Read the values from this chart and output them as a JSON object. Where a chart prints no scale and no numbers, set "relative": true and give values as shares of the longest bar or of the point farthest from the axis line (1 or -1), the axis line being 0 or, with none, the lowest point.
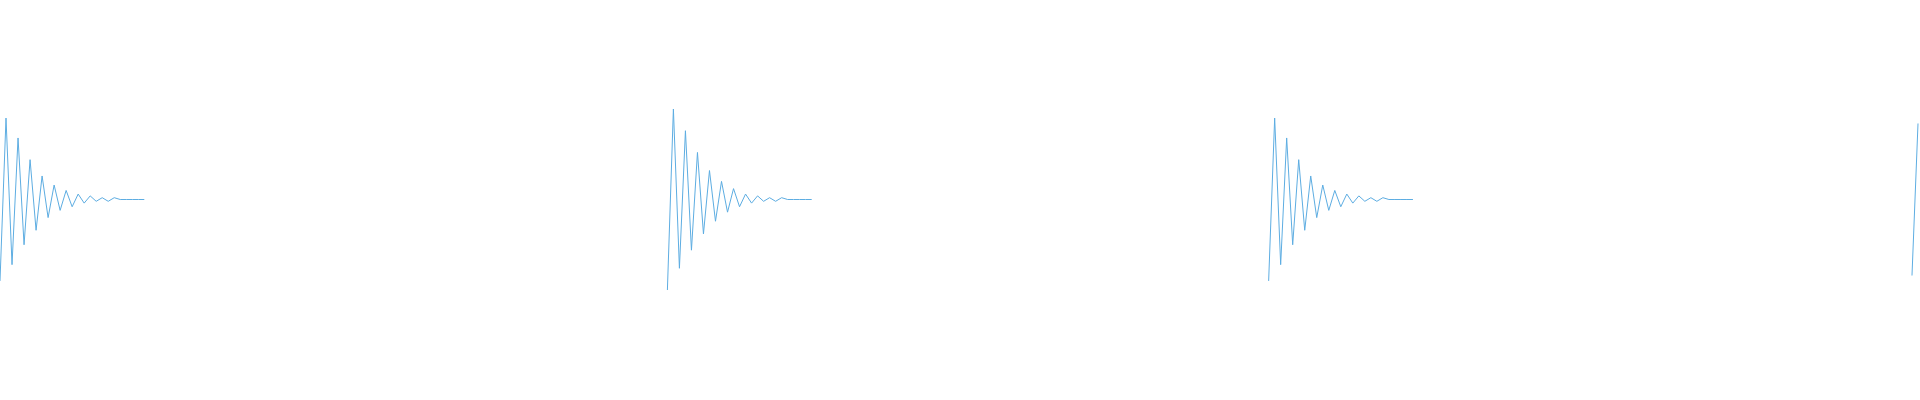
{
  "chart_data": {
    "type": "line",
    "relative": true,
    "categories": [
      null,
      null,
      null,
      null,
      null,
      null,
      null,
      null,
      null,
      null,
      null,
      null,
      null,
      null,
      null,
      null,
      null,
      null,
      null,
      null,
      null,
      null,
      null,
      null,
      null,
      null,
      null,
      null,
      null,
      null,
      null,
      null,
      null,
      null,
      null,
      null,
      null,
      null,
      null,
      null,
      null,
      null,
      null,
      null,
      null,
      null,
      null,
      null,
      null,
      null,
      null,
      null,
      null,
      null,
      null,
      null,
      null,
      null,
      null,
      null,
      null,
      null,
      null,
      null,
      null,
      null,
      null,
      null,
      null,
      null,
      null,
      null,
      null,
      null,
      null,
      null,
      null,
      null,
      null,
      null,
      null,
      null,
      null,
      null,
      null,
      null,
      null,
      null,
      null,
      null,
      null,
      null,
      null,
      null,
      null,
      null,
      null,
      null,
      null,
      null,
      null,
      null,
      null,
      null,
      null,
      null,
      null,
      null,
      null,
      null,
      null,
      null,
      null,
      null,
      null,
      null,
      null,
      null,
      null,
      null,
      null,
      null,
      null,
      null,
      null,
      null,
      null,
      null,
      null,
      null,
      null,
      null,
      null,
      null,
      null,
      null,
      null,
      null,
      null,
      null,
      null,
      null,
      null,
      null,
      null,
      null,
      null,
      null,
      null,
      null,
      null,
      null,
      null,
      null,
      null,
      null,
      null,
      null,
      null,
      null,
      null,
      null,
      null,
      null,
      null,
      null,
      null,
      null,
      null,
      null,
      null,
      null,
      null,
      null,
      null,
      null,
      null,
      null,
      null,
      null,
      null,
      null,
      null,
      null,
      null,
      null,
      null,
      null,
      null,
      null,
      null,
      null,
      null,
      null,
      null,
      null,
      null,
      null,
      null,
      null,
      null,
      null,
      null,
      null,
      null,
      null,
      null,
      null,
      null,
      null,
      null,
      null,
      null,
      null,
      null,
      null,
      null,
      null,
      null,
      null,
      null,
      null,
      null,
      null,
      null,
      null,
      null,
      null,
      null,
      null,
      null,
      null,
      null,
      null,
      null,
      null,
      null,
      null,
      null,
      null,
      null,
      null,
      null,
      null,
      null,
      null,
      null,
      null,
      null,
      null,
      null,
      null,
      null,
      null,
      null,
      null,
      null,
      null,
      null,
      null,
      null,
      null,
      null,
      null,
      null,
      null,
      null,
      null,
      null,
      null,
      null,
      null,
      null,
      null,
      null,
      null,
      null,
      null,
      null,
      null,
      null,
      null,
      null,
      null,
      null,
      null,
      null,
      null,
      null,
      null,
      null,
      null,
      null,
      null,
      null,
      null,
      null,
      null,
      null,
      null,
      null,
      null,
      null,
      null,
      null,
      null,
      null,
      null,
      null,
      null,
      null,
      null,
      null,
      null,
      null,
      null,
      null,
      null,
      null,
      null
    ],
    "series": [
      {
        "color": "#5dade2",
        "values": [
          0.05,
          0.95,
          0.14,
          0.84,
          0.25,
          0.72,
          0.33,
          0.63,
          0.4,
          0.58,
          0.44,
          0.55,
          0.46,
          0.53,
          0.48,
          0.52,
          0.49,
          0.51,
          0.49,
          0.51,
          0.5,
          0.5,
          0.5,
          0.5,
          0.5,
          null,
          null,
          null,
          null,
          null,
          null,
          null,
          null,
          null,
          null,
          null,
          null,
          null,
          null,
          null,
          null,
          null,
          null,
          null,
          null,
          null,
          null,
          null,
          null,
          null,
          null,
          null,
          null,
          null,
          null,
          null,
          null,
          null,
          null,
          null,
          null,
          null,
          null,
          null,
          null,
          null,
          null,
          null,
          null,
          null,
          null,
          null,
          null,
          null,
          null,
          null,
          null,
          null,
          null,
          null,
          null,
          null,
          null,
          null,
          null,
          null,
          null,
          null,
          null,
          null,
          null,
          null,
          null,
          null,
          null,
          null,
          null,
          null,
          null,
          null,
          null,
          null,
          null,
          null,
          null,
          null,
          null,
          null,
          null,
          null,
          null,
          null,
          null,
          null,
          null,
          null,
          null,
          null,
          null,
          null,
          null,
          null,
          null,
          null,
          null,
          null,
          null,
          null,
          null,
          null,
          null,
          null,
          null,
          null,
          null,
          null,
          null,
          null,
          null,
          null,
          null,
          null,
          null,
          null,
          null,
          null,
          null,
          null,
          null,
          null,
          null,
          null,
          null,
          null,
          null,
          null,
          null,
          null,
          null,
          null,
          null,
          null,
          null,
          null,
          null,
          null,
          null,
          null,
          null,
          null,
          null,
          null,
          null,
          null,
          null,
          null,
          null,
          null,
          null,
          null,
          null,
          null,
          null,
          null,
          null,
          null,
          null,
          null,
          null,
          null,
          null,
          null,
          null,
          null,
          null,
          null,
          null,
          null,
          null,
          null,
          null,
          null,
          null,
          null,
          null,
          null,
          null,
          null,
          null,
          null,
          null,
          null,
          null,
          null,
          null,
          null,
          null,
          null,
          null,
          null,
          null,
          null,
          null,
          null,
          null,
          null,
          null,
          null,
          null,
          null,
          null,
          null,
          null,
          null,
          null,
          null,
          null,
          null,
          null,
          null,
          null,
          null,
          null,
          null,
          null,
          null,
          null,
          null,
          null,
          null,
          null,
          null,
          null,
          null,
          null,
          null,
          null,
          null,
          null,
          null,
          null,
          null,
          null,
          null,
          null,
          null,
          null,
          null,
          null,
          null,
          null,
          null,
          null,
          null,
          null,
          null,
          null,
          null,
          null,
          null,
          null,
          null,
          null,
          null,
          null,
          null,
          null,
          null,
          null,
          null,
          null,
          null,
          null,
          null,
          null,
          null,
          null,
          null,
          null,
          null,
          null,
          null,
          null,
          null,
          null,
          null,
          null,
          null,
          null,
          null,
          null,
          null,
          null,
          null,
          null,
          null,
          null,
          null,
          null,
          null
        ]
      },
      {
        "color": "#5dade2",
        "values": [
          null,
          null,
          null,
          null,
          null,
          null,
          null,
          null,
          null,
          null,
          null,
          null,
          null,
          null,
          null,
          null,
          null,
          null,
          null,
          null,
          null,
          null,
          null,
          null,
          null,
          null,
          null,
          null,
          null,
          null,
          null,
          null,
          null,
          null,
          null,
          null,
          null,
          null,
          null,
          null,
          null,
          null,
          null,
          null,
          null,
          null,
          null,
          null,
          null,
          null,
          null,
          null,
          null,
          null,
          null,
          null,
          null,
          null,
          null,
          null,
          null,
          null,
          null,
          null,
          null,
          null,
          null,
          null,
          null,
          null,
          null,
          null,
          null,
          null,
          null,
          null,
          null,
          null,
          null,
          null,
          null,
          null,
          null,
          null,
          null,
          null,
          null,
          null,
          null,
          null,
          null,
          null,
          null,
          null,
          null,
          null,
          null,
          null,
          null,
          null,
          null,
          null,
          null,
          null,
          null,
          null,
          null,
          null,
          null,
          null,
          null,
          0,
          1,
          0.12,
          0.88,
          0.22,
          0.76,
          0.31,
          0.66,
          0.38,
          0.6,
          0.43,
          0.56,
          0.46,
          0.53,
          0.48,
          0.52,
          0.49,
          0.51,
          0.49,
          0.51,
          0.5,
          0.5,
          0.5,
          0.5,
          0.5,
          null,
          null,
          null,
          null,
          null,
          null,
          null,
          null,
          null,
          null,
          null,
          null,
          null,
          null,
          null,
          null,
          null,
          null,
          null,
          null,
          null,
          null,
          null,
          null,
          null,
          null,
          null,
          null,
          null,
          null,
          null,
          null,
          null,
          null,
          null,
          null,
          null,
          null,
          null,
          null,
          null,
          null,
          null,
          null,
          null,
          null,
          null,
          null,
          null,
          null,
          null,
          null,
          null,
          null,
          null,
          null,
          null,
          null,
          null,
          null,
          null,
          null,
          null,
          null,
          null,
          null,
          null,
          null,
          null,
          null,
          null,
          null,
          null,
          null,
          null,
          null,
          null,
          null,
          null,
          null,
          null,
          null,
          null,
          null,
          null,
          null,
          null,
          null,
          null,
          null,
          null,
          null,
          null,
          null,
          null,
          null,
          null,
          null,
          null,
          null,
          null,
          null,
          null,
          null,
          null,
          null,
          null,
          null,
          null,
          null,
          null,
          null,
          null,
          null,
          null,
          null,
          null,
          null,
          null,
          null,
          null,
          null,
          null,
          null,
          null,
          null,
          null,
          null,
          null,
          null,
          null,
          null,
          null,
          null,
          null,
          null,
          null,
          null,
          null,
          null,
          null,
          null,
          null,
          null,
          null,
          null,
          null,
          null,
          null,
          null,
          null,
          null,
          null,
          null,
          null,
          null,
          null,
          null,
          null,
          null,
          null,
          null,
          null,
          null,
          null,
          null,
          null,
          null,
          null,
          null,
          null,
          null,
          null,
          null,
          null,
          null,
          null,
          null,
          null,
          null,
          null,
          null,
          null,
          null
        ]
      },
      {
        "color": "#5dade2",
        "values": [
          null,
          null,
          null,
          null,
          null,
          null,
          null,
          null,
          null,
          null,
          null,
          null,
          null,
          null,
          null,
          null,
          null,
          null,
          null,
          null,
          null,
          null,
          null,
          null,
          null,
          null,
          null,
          null,
          null,
          null,
          null,
          null,
          null,
          null,
          null,
          null,
          null,
          null,
          null,
          null,
          null,
          null,
          null,
          null,
          null,
          null,
          null,
          null,
          null,
          null,
          null,
          null,
          null,
          null,
          null,
          null,
          null,
          null,
          null,
          null,
          null,
          null,
          null,
          null,
          null,
          null,
          null,
          null,
          null,
          null,
          null,
          null,
          null,
          null,
          null,
          null,
          null,
          null,
          null,
          null,
          null,
          null,
          null,
          null,
          null,
          null,
          null,
          null,
          null,
          null,
          null,
          null,
          null,
          null,
          null,
          null,
          null,
          null,
          null,
          null,
          null,
          null,
          null,
          null,
          null,
          null,
          null,
          null,
          null,
          null,
          null,
          null,
          null,
          null,
          null,
          null,
          null,
          null,
          null,
          null,
          null,
          null,
          null,
          null,
          null,
          null,
          null,
          null,
          null,
          null,
          null,
          null,
          null,
          null,
          null,
          null,
          null,
          null,
          null,
          null,
          null,
          null,
          null,
          null,
          null,
          null,
          null,
          null,
          null,
          null,
          null,
          null,
          null,
          null,
          null,
          null,
          null,
          null,
          null,
          null,
          null,
          null,
          null,
          null,
          null,
          null,
          null,
          null,
          null,
          null,
          null,
          null,
          null,
          null,
          null,
          null,
          null,
          null,
          null,
          null,
          null,
          null,
          null,
          null,
          null,
          null,
          null,
          null,
          null,
          null,
          null,
          null,
          null,
          null,
          null,
          null,
          null,
          null,
          null,
          null,
          null,
          null,
          null,
          null,
          null,
          null,
          null,
          null,
          null,
          null,
          null,
          0.05,
          0.95,
          0.14,
          0.84,
          0.25,
          0.72,
          0.33,
          0.63,
          0.4,
          0.58,
          0.44,
          0.55,
          0.46,
          0.53,
          0.48,
          0.52,
          0.49,
          0.51,
          0.49,
          0.51,
          0.5,
          0.5,
          0.5,
          0.5,
          0.5,
          null,
          null,
          null,
          null,
          null,
          null,
          null,
          null,
          null,
          null,
          null,
          null,
          null,
          null,
          null,
          null,
          null,
          null,
          null,
          null,
          null,
          null,
          null,
          null,
          null,
          null,
          null,
          null,
          null,
          null,
          null,
          null,
          null,
          null,
          null,
          null,
          null,
          null,
          null,
          null,
          null,
          null,
          null,
          null,
          null,
          null,
          null,
          null,
          null,
          null,
          null,
          null,
          null,
          null,
          null,
          null,
          null,
          null,
          null,
          null,
          null,
          null,
          null,
          null,
          null,
          null,
          null,
          null,
          null,
          null,
          null,
          null,
          null,
          null,
          null,
          null,
          null,
          null,
          null,
          null,
          null,
          null,
          null,
          null
        ]
      },
      {
        "color": "#5dade2",
        "values": [
          null,
          null,
          null,
          null,
          null,
          null,
          null,
          null,
          null,
          null,
          null,
          null,
          null,
          null,
          null,
          null,
          null,
          null,
          null,
          null,
          null,
          null,
          null,
          null,
          null,
          null,
          null,
          null,
          null,
          null,
          null,
          null,
          null,
          null,
          null,
          null,
          null,
          null,
          null,
          null,
          null,
          null,
          null,
          null,
          null,
          null,
          null,
          null,
          null,
          null,
          null,
          null,
          null,
          null,
          null,
          null,
          null,
          null,
          null,
          null,
          null,
          null,
          null,
          null,
          null,
          null,
          null,
          null,
          null,
          null,
          null,
          null,
          null,
          null,
          null,
          null,
          null,
          null,
          null,
          null,
          null,
          null,
          null,
          null,
          null,
          null,
          null,
          null,
          null,
          null,
          null,
          null,
          null,
          null,
          null,
          null,
          null,
          null,
          null,
          null,
          null,
          null,
          null,
          null,
          null,
          null,
          null,
          null,
          null,
          null,
          null,
          null,
          null,
          null,
          null,
          null,
          null,
          null,
          null,
          null,
          null,
          null,
          null,
          null,
          null,
          null,
          null,
          null,
          null,
          null,
          null,
          null,
          null,
          null,
          null,
          null,
          null,
          null,
          null,
          null,
          null,
          null,
          null,
          null,
          null,
          null,
          null,
          null,
          null,
          null,
          null,
          null,
          null,
          null,
          null,
          null,
          null,
          null,
          null,
          null,
          null,
          null,
          null,
          null,
          null,
          null,
          null,
          null,
          null,
          null,
          null,
          null,
          null,
          null,
          null,
          null,
          null,
          null,
          null,
          null,
          null,
          null,
          null,
          null,
          null,
          null,
          null,
          null,
          null,
          null,
          null,
          null,
          null,
          null,
          null,
          null,
          null,
          null,
          null,
          null,
          null,
          null,
          null,
          null,
          null,
          null,
          null,
          null,
          null,
          null,
          null,
          null,
          null,
          null,
          null,
          null,
          null,
          null,
          null,
          null,
          null,
          null,
          null,
          null,
          null,
          null,
          null,
          null,
          null,
          null,
          null,
          null,
          null,
          null,
          null,
          null,
          null,
          null,
          null,
          null,
          null,
          null,
          null,
          null,
          null,
          null,
          null,
          null,
          null,
          null,
          null,
          null,
          null,
          null,
          null,
          null,
          null,
          null,
          null,
          null,
          null,
          null,
          null,
          null,
          null,
          null,
          null,
          null,
          null,
          null,
          null,
          null,
          null,
          null,
          null,
          null,
          null,
          null,
          null,
          null,
          null,
          null,
          null,
          null,
          null,
          null,
          null,
          null,
          null,
          null,
          null,
          null,
          null,
          null,
          null,
          null,
          null,
          null,
          null,
          null,
          null,
          null,
          null,
          null,
          null,
          null,
          null,
          null,
          null,
          null,
          null,
          null,
          null,
          null,
          null,
          null,
          null,
          null,
          0.08,
          0.92
        ]
      }
    ]
  }
}
